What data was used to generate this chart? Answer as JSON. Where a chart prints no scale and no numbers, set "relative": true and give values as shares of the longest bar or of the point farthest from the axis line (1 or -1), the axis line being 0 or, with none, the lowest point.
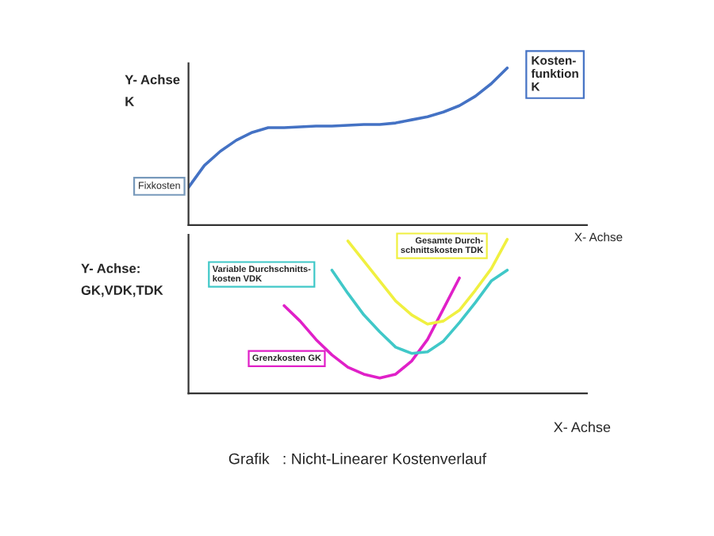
{
  "chart_data": [
    {
      "type": "line",
      "relative": true,
      "xlabel": "X- Achse",
      "ylabel": "Y- Achse\nK",
      "legend": false,
      "marker": "none",
      "line_style": "solid",
      "annotations": [
        "Fixkosten"
      ],
      "categories": [
        null,
        null,
        null,
        null,
        null,
        null,
        null,
        null,
        null,
        null,
        null,
        null,
        null,
        null,
        null,
        null,
        null,
        null,
        null,
        null,
        null,
        null,
        null,
        null,
        null,
        null
      ],
      "series": [
        {
          "name": "Kosten-\nfunktion\nK",
          "color": "#4472c4",
          "values": [
            0.24,
            0.38,
            0.47,
            0.54,
            0.59,
            0.62,
            0.62,
            0.625,
            0.63,
            0.63,
            0.635,
            0.64,
            0.64,
            0.65,
            0.67,
            0.69,
            0.72,
            0.76,
            0.82,
            0.9,
            1.0,
            null,
            null,
            null,
            null,
            null
          ]
        }
      ]
    },
    {
      "type": "line",
      "relative": true,
      "xlabel": "X- Achse",
      "ylabel": "Y- Achse:\nGK,VDK,TDK",
      "legend": false,
      "marker": "none",
      "line_style": "solid",
      "annotations": [
        "Grafik   : Nicht-Linearer Kostenverlauf"
      ],
      "categories": [
        null,
        null,
        null,
        null,
        null,
        null,
        null,
        null,
        null,
        null,
        null,
        null,
        null,
        null,
        null,
        null,
        null,
        null,
        null,
        null,
        null,
        null,
        null,
        null,
        null,
        null
      ],
      "series": [
        {
          "name": "Grenzkosten GK",
          "color": "#e020c8",
          "values": [
            null,
            null,
            null,
            null,
            null,
            null,
            0.57,
            0.47,
            0.35,
            0.25,
            0.17,
            0.125,
            0.1,
            0.125,
            0.21,
            0.35,
            0.55,
            0.75,
            null,
            null,
            null,
            null,
            null,
            null,
            null,
            null
          ]
        },
        {
          "name": "Variable Durchschnitts-\nkosten VDK",
          "color": "#40c8c8",
          "values": [
            null,
            null,
            null,
            null,
            null,
            null,
            null,
            null,
            null,
            0.8,
            0.65,
            0.51,
            0.4,
            0.3,
            0.26,
            0.27,
            0.34,
            0.46,
            0.59,
            0.73,
            0.8,
            null,
            null,
            null,
            null,
            null
          ]
        },
        {
          "name": "Gesamte Durch-\nschnittskosten TDK",
          "color": "#f0f040",
          "values": [
            null,
            null,
            null,
            null,
            null,
            null,
            null,
            null,
            null,
            null,
            0.99,
            0.86,
            0.73,
            0.6,
            0.51,
            0.45,
            0.47,
            0.54,
            0.67,
            0.81,
            1.0,
            null,
            null,
            null,
            null,
            null
          ]
        }
      ]
    }
  ]
}
